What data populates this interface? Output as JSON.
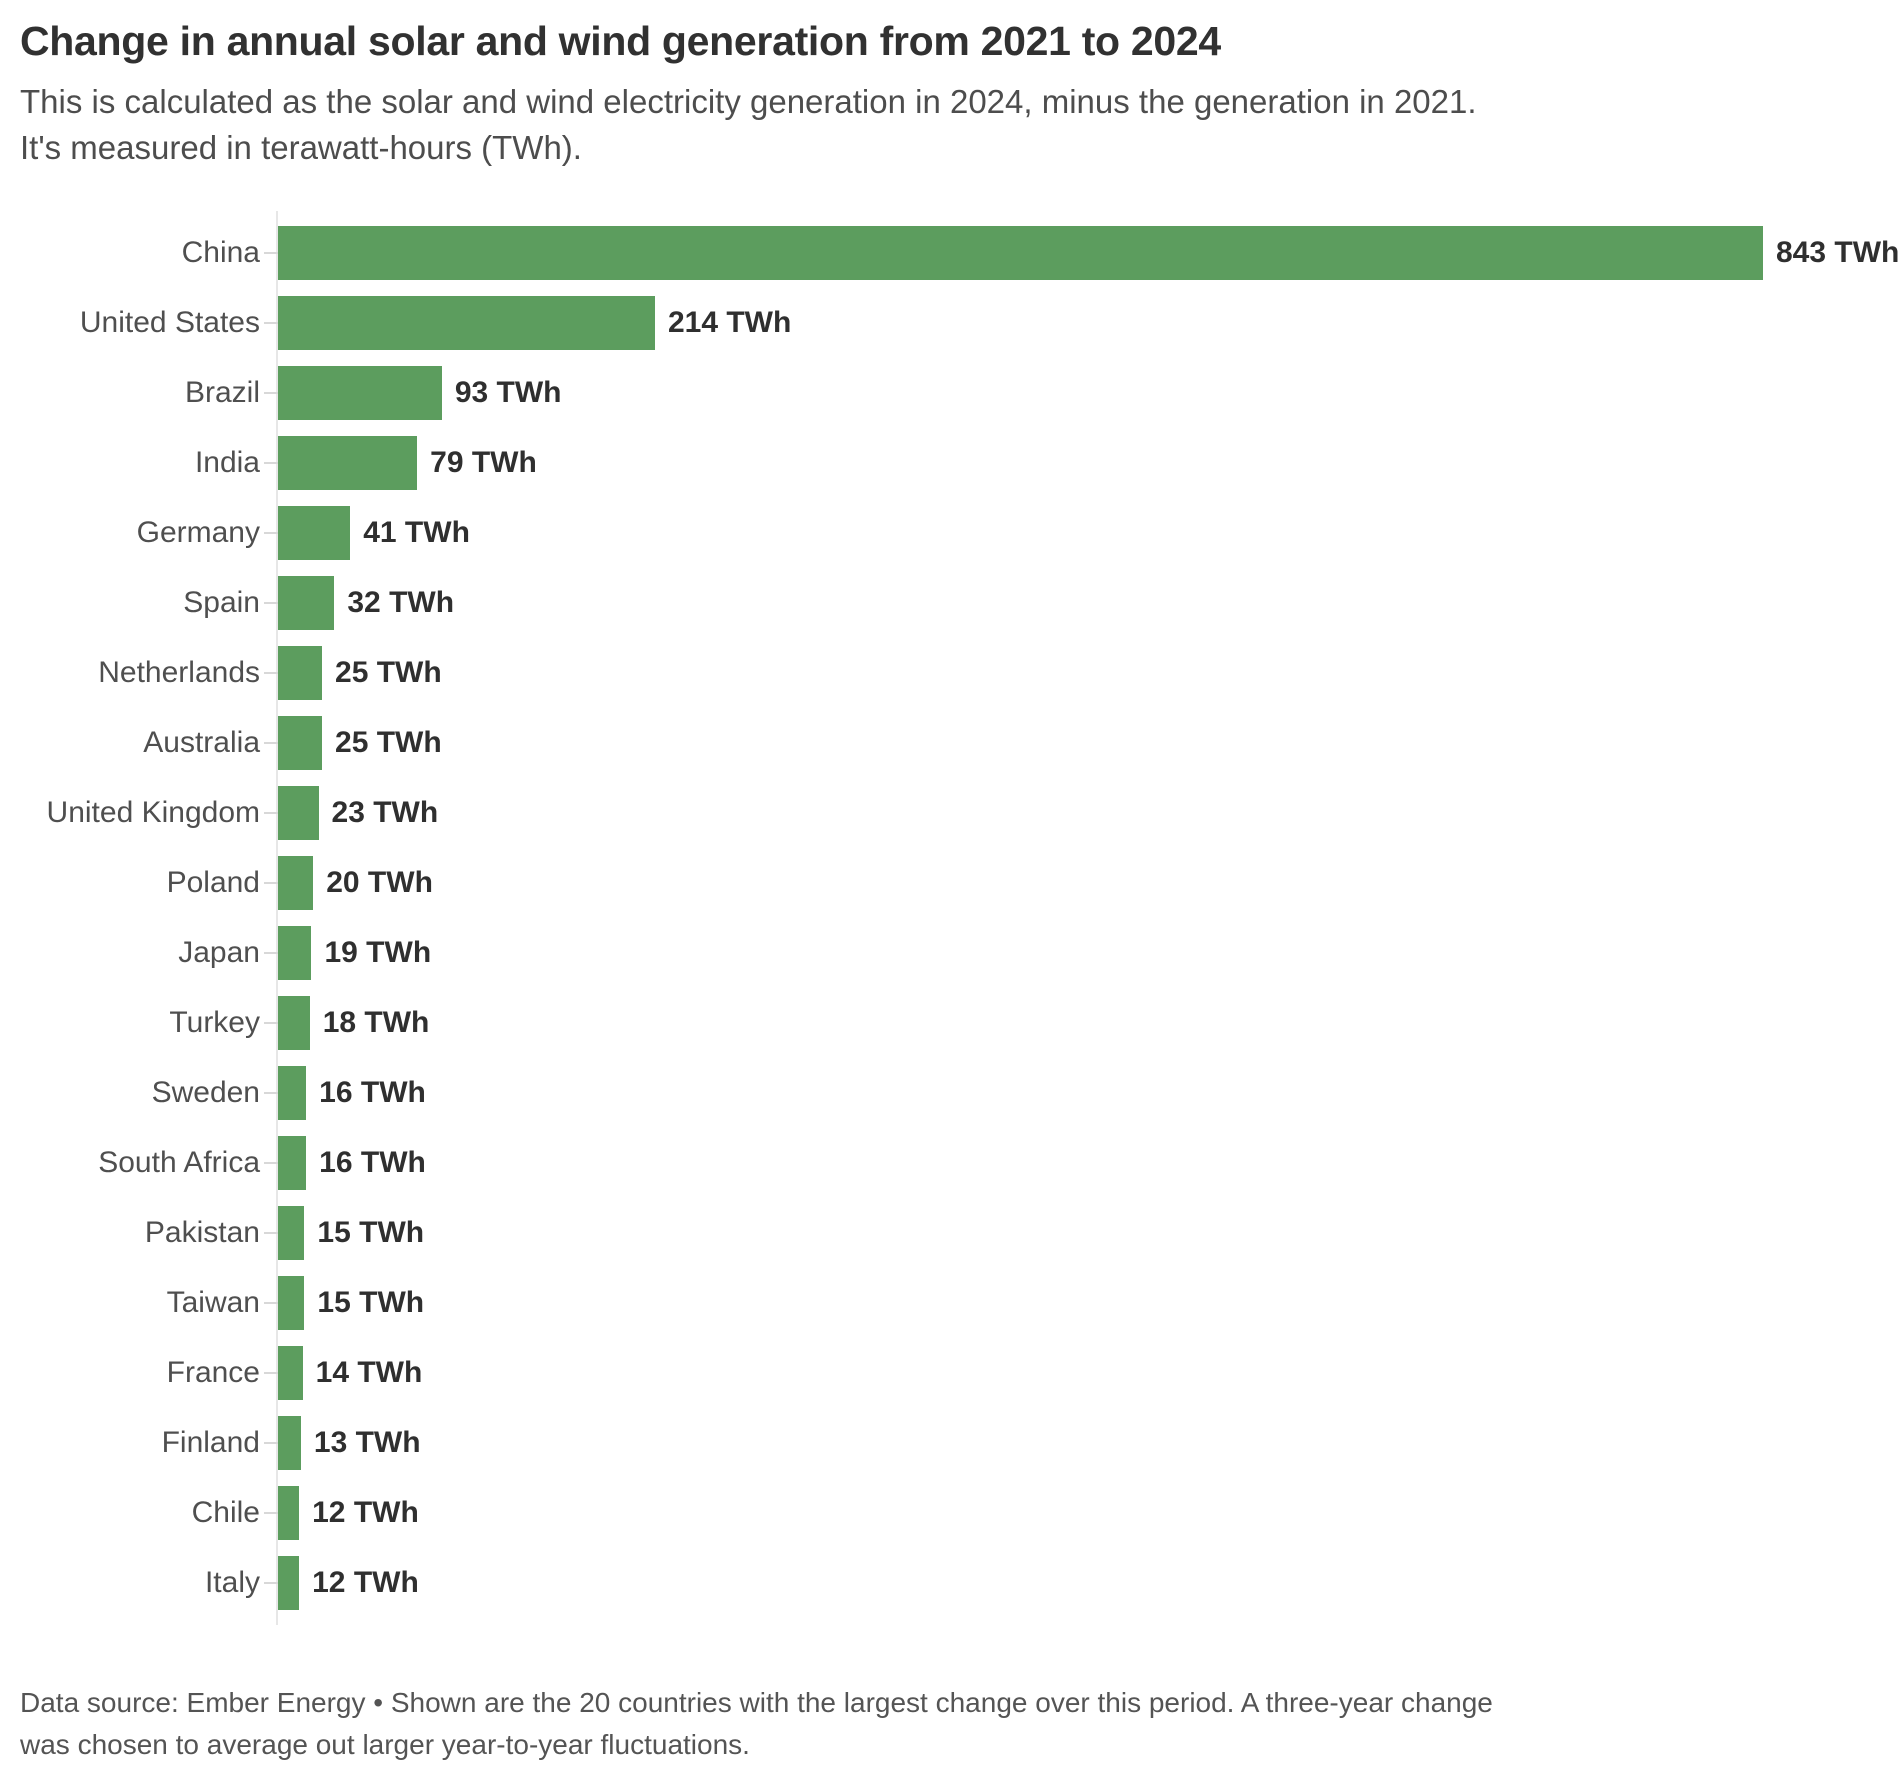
{
  "chart_data": {
    "type": "bar",
    "orientation": "horizontal",
    "title": "Change in annual solar and wind generation from 2021 to 2024",
    "subtitle_lines": [
      "This is calculated as the solar and wind electricity generation in 2024, minus the generation in 2021.",
      "It's measured in terawatt-hours (TWh)."
    ],
    "categories": [
      "China",
      "United States",
      "Brazil",
      "India",
      "Germany",
      "Spain",
      "Netherlands",
      "Australia",
      "United Kingdom",
      "Poland",
      "Japan",
      "Turkey",
      "Sweden",
      "South Africa",
      "Pakistan",
      "Taiwan",
      "France",
      "Finland",
      "Chile",
      "Italy"
    ],
    "values": [
      843,
      214,
      93,
      79,
      41,
      32,
      25,
      25,
      23,
      20,
      19,
      18,
      16,
      16,
      15,
      15,
      14,
      13,
      12,
      12
    ],
    "unit": "TWh",
    "xlim": [
      0,
      843
    ],
    "grid": false,
    "value_labels": true,
    "bar_color": "#5c9d5e",
    "label_color": "#4f4f4f",
    "value_label_color": "#2f2f2f",
    "note": "Data source: Ember Energy • Shown are the 20 countries with the largest change over this period. A three-year change was chosen to average out larger year-to-year fluctuations."
  }
}
